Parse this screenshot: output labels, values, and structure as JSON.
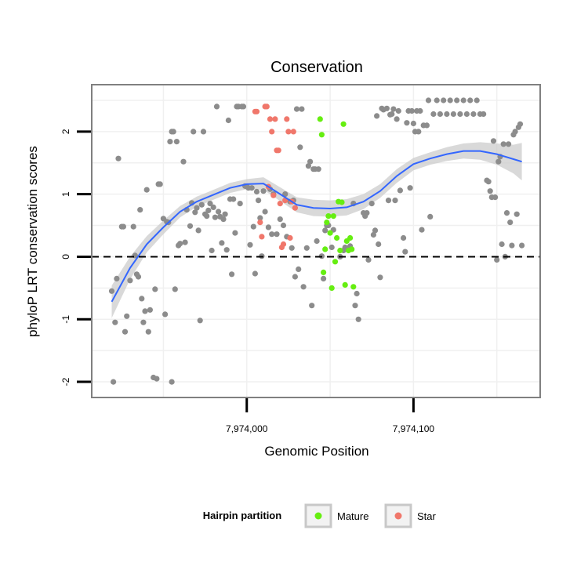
{
  "chart_data": {
    "type": "scatter",
    "title": "Conservation",
    "xlabel": "Genomic Position",
    "ylabel": "phyloP LRT conservation scores",
    "xlim": [
      7973907,
      7974176
    ],
    "ylim": [
      -2.25,
      2.75
    ],
    "x_ticks": [
      7974000,
      7974100
    ],
    "x_tick_labels": [
      "7,974,000",
      "7,974,100"
    ],
    "y_ticks": [
      -2,
      -1,
      0,
      1,
      2
    ],
    "y_tick_labels": [
      "-2",
      "-1",
      "0",
      "1",
      "2"
    ],
    "reference_line": {
      "y": 0,
      "style": "dashed",
      "color": "#000000"
    },
    "grid": true,
    "legend": {
      "title": "Hairpin partition",
      "placement": "bottom",
      "entries": [
        {
          "label": "Mature",
          "color": "#66ee11"
        },
        {
          "label": "Star",
          "color": "#f0776b"
        }
      ]
    },
    "colors": {
      "other": "#8c8c8c",
      "Mature": "#66ee11",
      "Star": "#f0776b",
      "smooth": "#3366ff",
      "ribbon": "#cccccc"
    },
    "series": [
      {
        "group": "other",
        "points": [
          [
            7973919,
            -0.55
          ],
          [
            7973920,
            -2.0
          ],
          [
            7973921,
            -1.05
          ],
          [
            7973922,
            -0.35
          ],
          [
            7973923,
            1.57
          ],
          [
            7973925,
            0.48
          ],
          [
            7973926,
            0.48
          ],
          [
            7973927,
            -1.2
          ],
          [
            7973928,
            -0.95
          ],
          [
            7973930,
            -0.38
          ],
          [
            7973932,
            0.48
          ],
          [
            7973933,
            0.02
          ],
          [
            7973934,
            -0.28
          ],
          [
            7973935,
            -0.32
          ],
          [
            7973936,
            0.75
          ],
          [
            7973937,
            -0.67
          ],
          [
            7973938,
            -1.05
          ],
          [
            7973939,
            -0.87
          ],
          [
            7973940,
            1.07
          ],
          [
            7973941,
            -1.2
          ],
          [
            7973942,
            -0.85
          ],
          [
            7973944,
            -1.93
          ],
          [
            7973945,
            -0.52
          ],
          [
            7973946,
            -1.95
          ],
          [
            7973947,
            1.16
          ],
          [
            7973948,
            1.16
          ],
          [
            7973950,
            0.61
          ],
          [
            7973951,
            -0.92
          ],
          [
            7973952,
            0.56
          ],
          [
            7973953,
            0.55
          ],
          [
            7973954,
            1.84
          ],
          [
            7973955,
            2.0
          ],
          [
            7973956,
            2.0
          ],
          [
            7973957,
            -0.52
          ],
          [
            7973955,
            -2.0
          ],
          [
            7973958,
            1.84
          ],
          [
            7973959,
            0.18
          ],
          [
            7973960,
            0.21
          ],
          [
            7973962,
            1.52
          ],
          [
            7973963,
            0.23
          ],
          [
            7973964,
            0.75
          ],
          [
            7973966,
            0.49
          ],
          [
            7973967,
            0.86
          ],
          [
            7973968,
            2.0
          ],
          [
            7973969,
            0.71
          ],
          [
            7973970,
            0.78
          ],
          [
            7973971,
            0.42
          ],
          [
            7973972,
            -1.02
          ],
          [
            7973973,
            0.83
          ],
          [
            7973974,
            2.0
          ],
          [
            7973975,
            0.68
          ],
          [
            7973976,
            0.65
          ],
          [
            7973977,
            0.74
          ],
          [
            7973978,
            0.85
          ],
          [
            7973979,
            0.1
          ],
          [
            7973980,
            0.79
          ],
          [
            7973981,
            0.63
          ],
          [
            7973982,
            2.4
          ],
          [
            7973983,
            0.72
          ],
          [
            7973984,
            0.64
          ],
          [
            7973985,
            0.22
          ],
          [
            7973986,
            0.6
          ],
          [
            7973987,
            0.68
          ],
          [
            7973988,
            0.11
          ],
          [
            7973989,
            2.18
          ],
          [
            7973990,
            0.92
          ],
          [
            7973991,
            -0.28
          ],
          [
            7973992,
            0.92
          ],
          [
            7973993,
            0.38
          ],
          [
            7973994,
            2.4
          ],
          [
            7973995,
            2.4
          ],
          [
            7973996,
            0.85
          ],
          [
            7973997,
            2.4
          ],
          [
            7973998,
            2.4
          ],
          [
            7973999,
            1.13
          ],
          [
            7974000,
            1.12
          ],
          [
            7974001,
            1.1
          ],
          [
            7974002,
            0.19
          ],
          [
            7974003,
            1.1
          ],
          [
            7974004,
            0.48
          ],
          [
            7974005,
            -0.27
          ],
          [
            7974006,
            1.04
          ],
          [
            7974007,
            0.9
          ],
          [
            7974008,
            0.62
          ],
          [
            7974009,
            0.01
          ],
          [
            7974010,
            1.05
          ],
          [
            7974011,
            0.72
          ],
          [
            7974013,
            0.47
          ],
          [
            7974014,
            1.08
          ],
          [
            7974015,
            0.36
          ],
          [
            7974016,
            1.0
          ],
          [
            7974018,
            0.36
          ],
          [
            7974020,
            0.6
          ],
          [
            7974022,
            0.5
          ],
          [
            7974023,
            1.0
          ],
          [
            7974024,
            0.32
          ],
          [
            7974026,
            0.88
          ],
          [
            7974027,
            0.14
          ],
          [
            7974028,
            0.9
          ],
          [
            7974029,
            -0.32
          ],
          [
            7974030,
            2.36
          ],
          [
            7974031,
            -0.2
          ],
          [
            7974032,
            1.75
          ],
          [
            7974033,
            2.36
          ],
          [
            7974034,
            -0.48
          ],
          [
            7974036,
            0.14
          ],
          [
            7974037,
            1.45
          ],
          [
            7974038,
            1.52
          ],
          [
            7974039,
            -0.78
          ],
          [
            7974040,
            1.4
          ],
          [
            7974041,
            1.4
          ],
          [
            7974042,
            0.25
          ],
          [
            7974043,
            1.4
          ],
          [
            7974045,
            0.01
          ],
          [
            7974046,
            -0.35
          ],
          [
            7974047,
            0.42
          ],
          [
            7974048,
            0.5
          ],
          [
            7974049,
            0.5
          ],
          [
            7974051,
            0.15
          ],
          [
            7974052,
            0.43
          ],
          [
            7974056,
            0.0
          ],
          [
            7974058,
            0.1
          ],
          [
            7974059,
            0.15
          ],
          [
            7974062,
            0.17
          ],
          [
            7974064,
            0.85
          ],
          [
            7974065,
            -0.78
          ],
          [
            7974066,
            -0.59
          ],
          [
            7974067,
            -1.0
          ],
          [
            7974070,
            0.7
          ],
          [
            7974071,
            0.65
          ],
          [
            7974072,
            0.7
          ],
          [
            7974073,
            -0.05
          ],
          [
            7974075,
            0.85
          ],
          [
            7974076,
            0.35
          ],
          [
            7974077,
            0.42
          ],
          [
            7974078,
            2.25
          ],
          [
            7974079,
            0.2
          ],
          [
            7974080,
            -0.33
          ],
          [
            7974081,
            2.37
          ],
          [
            7974082,
            2.35
          ],
          [
            7974084,
            2.37
          ],
          [
            7974085,
            0.9
          ],
          [
            7974086,
            2.27
          ],
          [
            7974087,
            2.28
          ],
          [
            7974088,
            2.36
          ],
          [
            7974089,
            0.9
          ],
          [
            7974090,
            2.2
          ],
          [
            7974091,
            2.33
          ],
          [
            7974092,
            1.06
          ],
          [
            7974094,
            0.3
          ],
          [
            7974095,
            0.08
          ],
          [
            7974096,
            2.14
          ],
          [
            7974097,
            2.33
          ],
          [
            7974098,
            1.1
          ],
          [
            7974099,
            2.33
          ],
          [
            7974100,
            2.13
          ],
          [
            7974101,
            2.0
          ],
          [
            7974102,
            2.33
          ],
          [
            7974103,
            2.0
          ],
          [
            7974104,
            2.33
          ],
          [
            7974105,
            0.43
          ],
          [
            7974106,
            2.1
          ],
          [
            7974108,
            2.1
          ],
          [
            7974109,
            2.5
          ],
          [
            7974110,
            0.64
          ],
          [
            7974112,
            2.28
          ],
          [
            7974114,
            2.5
          ],
          [
            7974116,
            2.28
          ],
          [
            7974118,
            2.5
          ],
          [
            7974120,
            2.28
          ],
          [
            7974122,
            2.5
          ],
          [
            7974124,
            2.28
          ],
          [
            7974126,
            2.5
          ],
          [
            7974128,
            2.28
          ],
          [
            7974130,
            2.5
          ],
          [
            7974132,
            2.28
          ],
          [
            7974134,
            2.5
          ],
          [
            7974136,
            2.28
          ],
          [
            7974138,
            2.5
          ],
          [
            7974140,
            2.28
          ],
          [
            7974142,
            2.28
          ],
          [
            7974144,
            1.22
          ],
          [
            7974145,
            1.2
          ],
          [
            7974146,
            1.05
          ],
          [
            7974147,
            0.95
          ],
          [
            7974148,
            1.85
          ],
          [
            7974149,
            0.95
          ],
          [
            7974150,
            -0.05
          ],
          [
            7974151,
            1.52
          ],
          [
            7974152,
            1.6
          ],
          [
            7974153,
            0.2
          ],
          [
            7974154,
            1.8
          ],
          [
            7974155,
            0.0
          ],
          [
            7974156,
            0.7
          ],
          [
            7974157,
            1.8
          ],
          [
            7974158,
            0.55
          ],
          [
            7974159,
            0.18
          ],
          [
            7974160,
            1.95
          ],
          [
            7974161,
            2.0
          ],
          [
            7974162,
            0.68
          ],
          [
            7974163,
            2.07
          ],
          [
            7974164,
            2.12
          ],
          [
            7974165,
            0.18
          ]
        ]
      },
      {
        "group": "Star",
        "name": "Star",
        "points": [
          [
            7974005,
            2.32
          ],
          [
            7974006,
            2.32
          ],
          [
            7974008,
            0.55
          ],
          [
            7974009,
            0.32
          ],
          [
            7974011,
            2.4
          ],
          [
            7974012,
            2.4
          ],
          [
            7974013,
            1.12
          ],
          [
            7974014,
            2.2
          ],
          [
            7974015,
            2.0
          ],
          [
            7974016,
            0.98
          ],
          [
            7974017,
            2.2
          ],
          [
            7974018,
            1.7
          ],
          [
            7974019,
            1.7
          ],
          [
            7974020,
            0.85
          ],
          [
            7974021,
            0.15
          ],
          [
            7974022,
            0.2
          ],
          [
            7974023,
            0.9
          ],
          [
            7974024,
            2.2
          ],
          [
            7974025,
            2.0
          ],
          [
            7974026,
            0.3
          ],
          [
            7974027,
            0.88
          ],
          [
            7974028,
            2.0
          ],
          [
            7974029,
            0.78
          ]
        ]
      },
      {
        "group": "Mature",
        "name": "Mature",
        "points": [
          [
            7974044,
            2.2
          ],
          [
            7974045,
            1.95
          ],
          [
            7974046,
            -0.25
          ],
          [
            7974047,
            0.12
          ],
          [
            7974048,
            0.55
          ],
          [
            7974049,
            0.65
          ],
          [
            7974050,
            0.38
          ],
          [
            7974051,
            -0.5
          ],
          [
            7974052,
            0.65
          ],
          [
            7974053,
            -0.08
          ],
          [
            7974054,
            0.3
          ],
          [
            7974055,
            0.88
          ],
          [
            7974056,
            0.1
          ],
          [
            7974057,
            0.87
          ],
          [
            7974058,
            2.12
          ],
          [
            7974059,
            -0.45
          ],
          [
            7974060,
            0.25
          ],
          [
            7974061,
            0.1
          ],
          [
            7974062,
            0.3
          ],
          [
            7974063,
            0.12
          ],
          [
            7974064,
            -0.48
          ]
        ]
      },
      {
        "group": "smooth",
        "kind": "loess",
        "x": [
          7973919,
          7973930,
          7973940,
          7973950,
          7973960,
          7973970,
          7973980,
          7973990,
          7974000,
          7974010,
          7974020,
          7974030,
          7974040,
          7974050,
          7974060,
          7974070,
          7974080,
          7974090,
          7974100,
          7974110,
          7974120,
          7974130,
          7974140,
          7974150,
          7974160,
          7974165
        ],
        "y": [
          -0.72,
          -0.18,
          0.2,
          0.47,
          0.72,
          0.88,
          0.99,
          1.1,
          1.16,
          1.17,
          1.0,
          0.83,
          0.78,
          0.77,
          0.79,
          0.88,
          1.05,
          1.29,
          1.48,
          1.57,
          1.64,
          1.69,
          1.69,
          1.64,
          1.56,
          1.52
        ],
        "lower": [
          -0.98,
          -0.36,
          0.07,
          0.36,
          0.63,
          0.8,
          0.91,
          1.02,
          1.08,
          1.07,
          0.89,
          0.71,
          0.65,
          0.64,
          0.66,
          0.76,
          0.94,
          1.18,
          1.38,
          1.47,
          1.53,
          1.57,
          1.55,
          1.47,
          1.33,
          1.22
        ],
        "upper": [
          -0.46,
          0.0,
          0.33,
          0.58,
          0.81,
          0.96,
          1.07,
          1.18,
          1.24,
          1.27,
          1.11,
          0.95,
          0.91,
          0.9,
          0.92,
          1.0,
          1.16,
          1.4,
          1.58,
          1.67,
          1.75,
          1.81,
          1.83,
          1.81,
          1.79,
          1.82
        ]
      }
    ]
  }
}
